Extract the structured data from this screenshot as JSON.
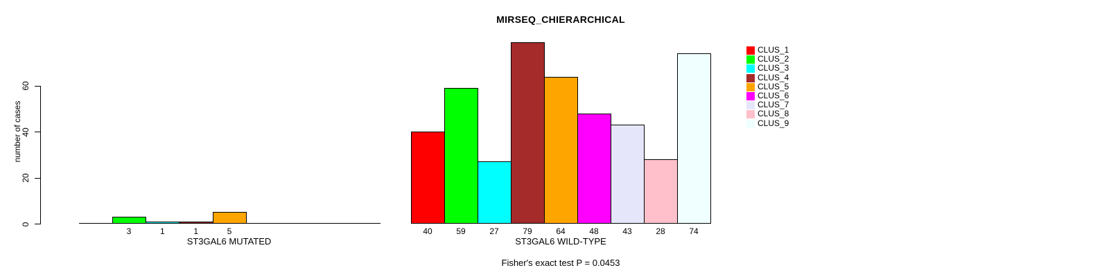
{
  "chart_data": {
    "type": "bar",
    "title": "MIRSEQ_CHIERARCHICAL",
    "ylabel": "number of cases",
    "ylim": [
      0,
      80
    ],
    "yticks": [
      0,
      20,
      40,
      60
    ],
    "grid": false,
    "legend_position": "right",
    "categories": [
      "CLUS_1",
      "CLUS_2",
      "CLUS_3",
      "CLUS_4",
      "CLUS_5",
      "CLUS_6",
      "CLUS_7",
      "CLUS_8",
      "CLUS_9"
    ],
    "palette": [
      "#FF0000",
      "#00FF00",
      "#00FFFF",
      "#A52A2A",
      "#FFA500",
      "#FF00FF",
      "#E6E6FA",
      "#FFC0CB",
      "#F0FFFF"
    ],
    "panels": [
      {
        "xlabel": "ST3GAL6 MUTATED",
        "values": [
          0,
          3,
          1,
          1,
          5,
          0,
          0,
          0,
          0
        ],
        "value_labels": [
          "",
          "3",
          "1",
          "1",
          "5",
          "",
          "",
          "",
          ""
        ]
      },
      {
        "xlabel": "ST3GAL6 WILD-TYPE",
        "values": [
          40,
          59,
          27,
          79,
          64,
          48,
          43,
          28,
          74
        ],
        "value_labels": [
          "40",
          "59",
          "27",
          "79",
          "64",
          "48",
          "43",
          "28",
          "74"
        ]
      }
    ],
    "legend": {
      "entries": [
        {
          "label": "CLUS_1",
          "color": "#FF0000"
        },
        {
          "label": "CLUS_2",
          "color": "#00FF00"
        },
        {
          "label": "CLUS_3",
          "color": "#00FFFF"
        },
        {
          "label": "CLUS_4",
          "color": "#A52A2A"
        },
        {
          "label": "CLUS_5",
          "color": "#FFA500"
        },
        {
          "label": "CLUS_6",
          "color": "#FF00FF"
        },
        {
          "label": "CLUS_7",
          "color": "#E6E6FA"
        },
        {
          "label": "CLUS_8",
          "color": "#FFC0CB"
        },
        {
          "label": "CLUS_9",
          "color": "#F0FFFF"
        }
      ]
    },
    "footnote": "Fisher's exact test P = 0.0453"
  }
}
